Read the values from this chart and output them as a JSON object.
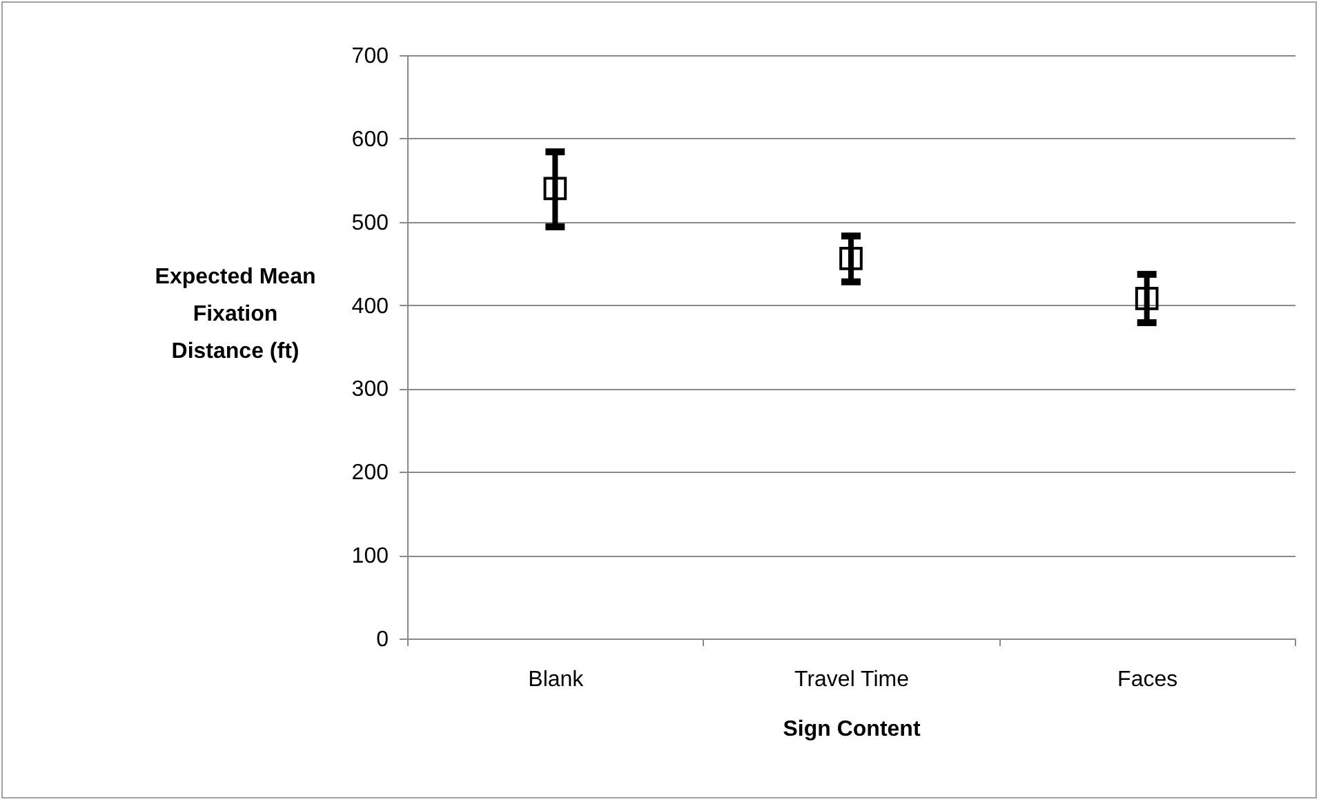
{
  "chart_data": {
    "type": "scatter",
    "xlabel": "Sign Content",
    "ylabel": "Expected Mean Fixation Distance (ft)",
    "categories": [
      "Blank",
      "Travel Time",
      "Faces"
    ],
    "series": [
      {
        "color": "#000000",
        "values": [
          540,
          456,
          408
        ],
        "errors": [
          [
            494,
            584
          ],
          [
            428,
            483
          ],
          [
            379,
            437
          ]
        ]
      }
    ],
    "marker": "square",
    "ylim": [
      0,
      700
    ],
    "yticks": [
      0,
      100,
      200,
      300,
      400,
      500,
      600,
      700
    ],
    "grid": "y",
    "legend": false
  }
}
